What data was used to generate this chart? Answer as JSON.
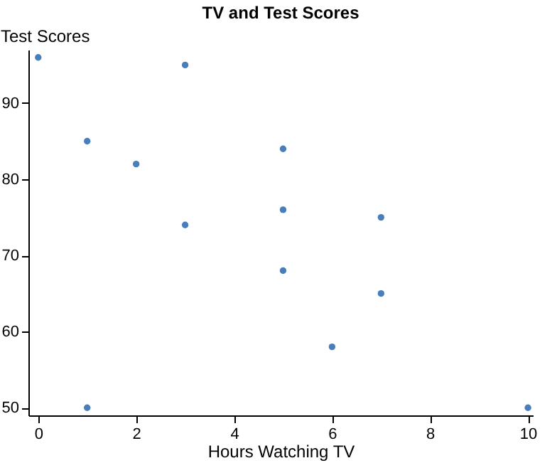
{
  "chart_data": {
    "type": "scatter",
    "title": "TV and Test Scores",
    "xlabel": "Hours Watching TV",
    "ylabel": "Test Scores",
    "x": [
      0,
      1,
      1,
      2,
      3,
      3,
      5,
      5,
      5,
      6,
      7,
      7,
      10
    ],
    "series": [
      {
        "color": "#4a7ebb",
        "values": [
          96,
          85,
          50,
          82,
          95,
          74,
          84,
          76,
          68,
          58,
          75,
          65,
          50
        ]
      }
    ],
    "xlim": [
      -0.2,
      10.1
    ],
    "ylim": [
      49,
      97
    ],
    "xticks": [
      0,
      2,
      4,
      6,
      8,
      10
    ],
    "yticks": [
      50,
      60,
      70,
      80,
      90
    ],
    "marker": "circle"
  }
}
